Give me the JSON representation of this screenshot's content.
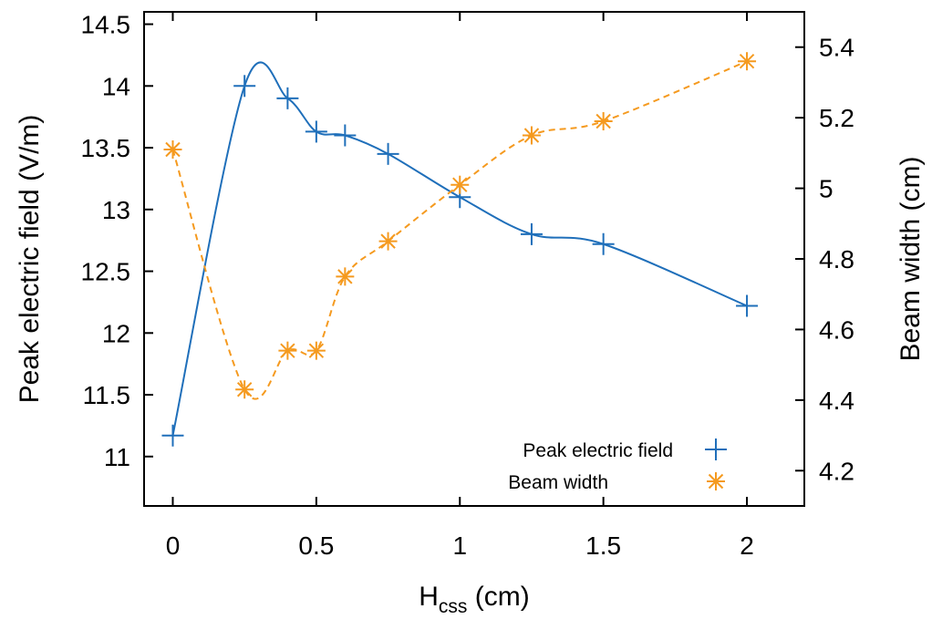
{
  "chart_data": {
    "type": "line",
    "xlabel": {
      "main": "H",
      "sub": "css",
      "rest": " (cm)"
    },
    "ylabel_left": "Peak electric field (V/m)",
    "ylabel_right": "Beam width (cm)",
    "xlim": [
      -0.1,
      2.2
    ],
    "ylim_left": [
      10.6,
      14.6
    ],
    "ylim_right": [
      4.1,
      5.5
    ],
    "xticks": [
      "0",
      "0.5",
      "1",
      "1.5",
      "2"
    ],
    "yticks_left": [
      "11",
      "11.5",
      "12",
      "12.5",
      "13",
      "13.5",
      "14",
      "14.5"
    ],
    "yticks_right": [
      "4.2",
      "4.4",
      "4.6",
      "4.8",
      "5",
      "5.2",
      "5.4"
    ],
    "grid": false,
    "legend_position": "bottom-right",
    "series": [
      {
        "name": "Peak electric field",
        "axis": "left",
        "color": "#1f6fba",
        "marker": "plus",
        "line_style": "solid",
        "x": [
          0,
          0.25,
          0.4,
          0.5,
          0.6,
          0.75,
          1.0,
          1.25,
          1.5,
          2.0
        ],
        "y": [
          11.17,
          14.0,
          13.9,
          13.63,
          13.6,
          13.45,
          13.1,
          12.8,
          12.72,
          12.22
        ]
      },
      {
        "name": "Beam width",
        "axis": "right",
        "color": "#f59a1f",
        "marker": "asterisk",
        "line_style": "dashed",
        "x": [
          0,
          0.25,
          0.4,
          0.5,
          0.6,
          0.75,
          1.0,
          1.25,
          1.5,
          2.0
        ],
        "y": [
          5.11,
          4.43,
          4.54,
          4.54,
          4.75,
          4.85,
          5.01,
          5.15,
          5.19,
          5.36
        ]
      }
    ]
  }
}
